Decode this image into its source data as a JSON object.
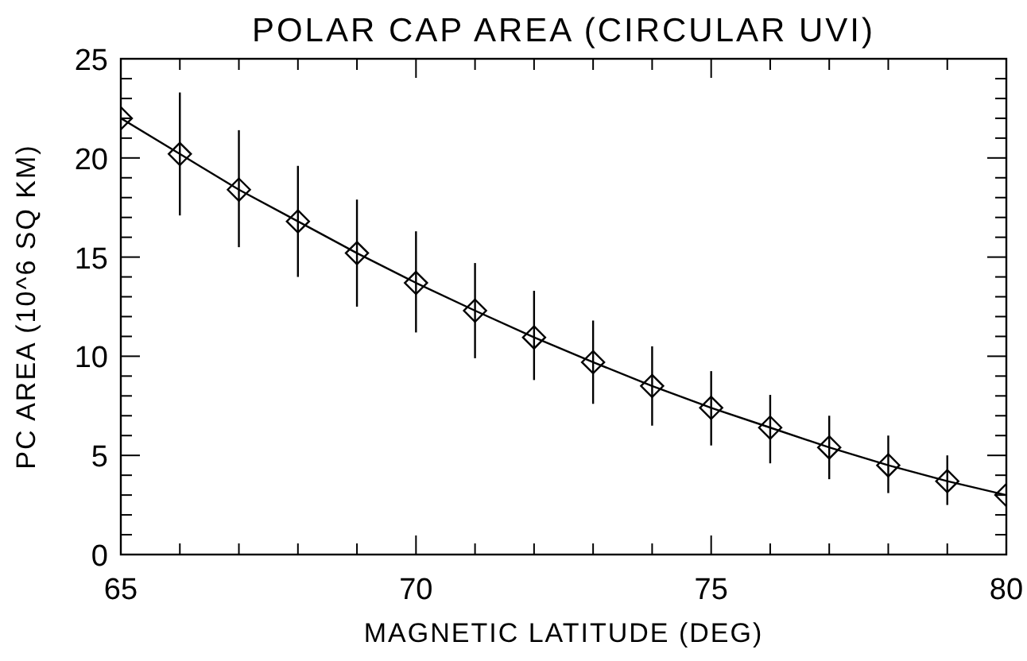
{
  "chart_data": {
    "type": "line",
    "title": "POLAR CAP AREA (CIRCULAR UVI)",
    "xlabel": "MAGNETIC LATITUDE (DEG)",
    "ylabel": "PC AREA (10^6 SQ KM)",
    "x": [
      65,
      66,
      67,
      68,
      69,
      70,
      71,
      72,
      73,
      74,
      75,
      76,
      77,
      78,
      79,
      80
    ],
    "series": [
      {
        "color": "#000000",
        "values": [
          22.0,
          20.2,
          18.4,
          16.8,
          15.2,
          13.7,
          12.3,
          10.95,
          9.7,
          8.5,
          7.4,
          6.4,
          5.4,
          4.5,
          3.7,
          3.0
        ],
        "errors": [
          null,
          [
            17.1,
            23.3
          ],
          [
            15.5,
            21.4
          ],
          [
            14.0,
            19.6
          ],
          [
            12.5,
            17.9
          ],
          [
            11.2,
            16.3
          ],
          [
            9.9,
            14.7
          ],
          [
            8.8,
            13.3
          ],
          [
            7.6,
            11.8
          ],
          [
            6.5,
            10.5
          ],
          [
            5.5,
            9.25
          ],
          [
            4.6,
            8.05
          ],
          [
            3.8,
            7.0
          ],
          [
            3.1,
            6.0
          ],
          [
            2.5,
            5.0
          ],
          null
        ]
      }
    ],
    "marker": "diamond",
    "line_style": "solid",
    "grid": false,
    "xlim": [
      65,
      80
    ],
    "ylim": [
      0,
      25
    ],
    "xticks": [
      65,
      {
        "value": 66,
        "label": null
      },
      {
        "value": 67,
        "label": null
      },
      {
        "value": 68,
        "label": null
      },
      {
        "value": 69,
        "label": null
      },
      70,
      {
        "value": 71,
        "label": null
      },
      {
        "value": 72,
        "label": null
      },
      {
        "value": 73,
        "label": null
      },
      {
        "value": 74,
        "label": null
      },
      75,
      {
        "value": 76,
        "label": null
      },
      {
        "value": 77,
        "label": null
      },
      {
        "value": 78,
        "label": null
      },
      {
        "value": 79,
        "label": null
      },
      80
    ],
    "yticks": [
      0,
      {
        "value": 1,
        "label": null
      },
      {
        "value": 2,
        "label": null
      },
      {
        "value": 3,
        "label": null
      },
      {
        "value": 4,
        "label": null
      },
      5,
      {
        "value": 6,
        "label": null
      },
      {
        "value": 7,
        "label": null
      },
      {
        "value": 8,
        "label": null
      },
      {
        "value": 9,
        "label": null
      },
      10,
      {
        "value": 11,
        "label": null
      },
      {
        "value": 12,
        "label": null
      },
      {
        "value": 13,
        "label": null
      },
      {
        "value": 14,
        "label": null
      },
      15,
      {
        "value": 16,
        "label": null
      },
      {
        "value": 17,
        "label": null
      },
      {
        "value": 18,
        "label": null
      },
      {
        "value": 19,
        "label": null
      },
      20,
      {
        "value": 21,
        "label": null
      },
      {
        "value": 22,
        "label": null
      },
      {
        "value": 23,
        "label": null
      },
      {
        "value": 24,
        "label": null
      },
      25
    ]
  }
}
